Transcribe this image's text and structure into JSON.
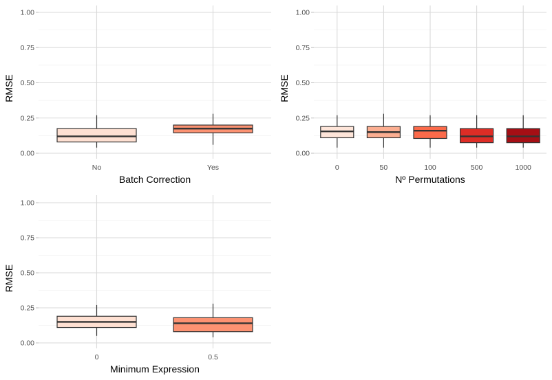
{
  "chart_data": [
    {
      "type": "boxplot",
      "xlabel": "Batch Correction",
      "ylabel": "RMSE",
      "ylim": [
        0,
        1
      ],
      "y_ticks": [
        "0.00",
        "0.25",
        "0.50",
        "0.75",
        "1.00"
      ],
      "categories": [
        "No",
        "Yes"
      ],
      "boxes": [
        {
          "category": "No",
          "whisker_low": 0.04,
          "q1": 0.08,
          "median": 0.12,
          "q3": 0.175,
          "whisker_high": 0.27,
          "fill": "#fee0d2"
        },
        {
          "category": "Yes",
          "whisker_low": 0.06,
          "q1": 0.145,
          "median": 0.175,
          "q3": 0.2,
          "whisker_high": 0.28,
          "fill": "#fc9272"
        }
      ],
      "grid": true
    },
    {
      "type": "boxplot",
      "xlabel": "Nº Permutations",
      "ylabel": "RMSE",
      "ylim": [
        0,
        1
      ],
      "y_ticks": [
        "0.00",
        "0.25",
        "0.50",
        "0.75",
        "1.00"
      ],
      "categories": [
        "0",
        "50",
        "100",
        "500",
        "1000"
      ],
      "boxes": [
        {
          "category": "0",
          "whisker_low": 0.04,
          "q1": 0.11,
          "median": 0.155,
          "q3": 0.19,
          "whisker_high": 0.27,
          "fill": "#fee5d9"
        },
        {
          "category": "50",
          "whisker_low": 0.04,
          "q1": 0.11,
          "median": 0.15,
          "q3": 0.19,
          "whisker_high": 0.28,
          "fill": "#fcae91"
        },
        {
          "category": "100",
          "whisker_low": 0.04,
          "q1": 0.105,
          "median": 0.16,
          "q3": 0.19,
          "whisker_high": 0.27,
          "fill": "#fb6a4a"
        },
        {
          "category": "500",
          "whisker_low": 0.04,
          "q1": 0.075,
          "median": 0.12,
          "q3": 0.175,
          "whisker_high": 0.27,
          "fill": "#de2d26"
        },
        {
          "category": "1000",
          "whisker_low": 0.04,
          "q1": 0.075,
          "median": 0.12,
          "q3": 0.175,
          "whisker_high": 0.27,
          "fill": "#a50f15"
        }
      ],
      "grid": true
    },
    {
      "type": "boxplot",
      "xlabel": "Minimum Expression",
      "ylabel": "RMSE",
      "ylim": [
        0,
        1
      ],
      "y_ticks": [
        "0.00",
        "0.25",
        "0.50",
        "0.75",
        "1.00"
      ],
      "categories": [
        "0",
        "0.5"
      ],
      "boxes": [
        {
          "category": "0",
          "whisker_low": 0.05,
          "q1": 0.11,
          "median": 0.15,
          "q3": 0.19,
          "whisker_high": 0.27,
          "fill": "#fee0d2"
        },
        {
          "category": "0.5",
          "whisker_low": 0.04,
          "q1": 0.08,
          "median": 0.14,
          "q3": 0.18,
          "whisker_high": 0.28,
          "fill": "#fc9272"
        }
      ],
      "grid": true
    }
  ]
}
